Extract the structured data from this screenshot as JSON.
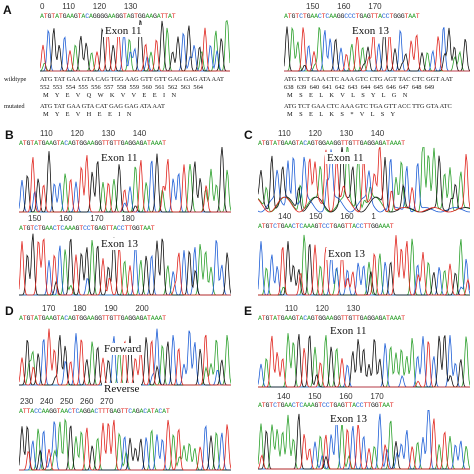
{
  "panels": {
    "A": {
      "letter": "A",
      "left": {
        "ticks": "0        110        120        130",
        "seq_top": "ATGTATGAAGTACAGGGGAAGGTAGTGGAAGATTAT",
        "exon_label": "Exon 11",
        "wildtype_label": "wildtype",
        "wildtype_seq": "ATG TAT GAA GTA CAG TGG AAG GTT GTT GAG GAG ATA AAT",
        "wildtype_pos": "552  553  554  555  556  557  558  559  560  561  562  563  564",
        "wildtype_aa": "M    Y    E    V    Q    W    K    V    V    E    E    I    N",
        "mutated_label": "mutated",
        "mutated_seq": "ATG TAT GAA GTA CAT GAG GAG ATA AAT",
        "mutated_aa": "M    Y    E    V    H    E    E    I    N"
      },
      "right": {
        "ticks": "150        160        170",
        "seq_top": "ATGTCTGAACTCAAGGCCCTGAGTTACCTGGGTAAT",
        "exon_label": "Exon 13",
        "wildtype_seq": "ATG TCT GAA CTC AAA GTC CTG AGT TAC CTC GGT AAT",
        "wildtype_pos": "638  639  640  641  642  643  644  645  646  647  648  649",
        "wildtype_aa": "M    S    E    L    K    V    L    S    Y    L    G    N",
        "mutated_seq": "ATG TCT GAA CTC AAA GTC TGA GTT ACC TTG GTA ATC",
        "mutated_aa": "M    S    E    L    K    S    *    V    L    S    Y"
      }
    },
    "B": {
      "letter": "B",
      "top_ticks": "110        120        130        140",
      "top_seq": "ATGTATGAAGTACAGTGGAAGGTTGTTGAGGAGATAAAT",
      "top_label": "Exon 11",
      "bottom_ticks": "150        160        170        180",
      "bottom_seq": "ATGTCTGAACTCAAAGTCCTGAGTTACCTTGGTAAT",
      "bottom_label": "Exon 13"
    },
    "C": {
      "letter": "C",
      "top_ticks": "110        120        130        140",
      "top_seq": "ATGTATGAAGTACAGTGGAAGGTTGTTGAGGAGATAAAT",
      "top_label": "Exon 11",
      "bottom_ticks": "140        150        160        1",
      "bottom_seq": "ATGTCTGAACTCAAAGTCCTGAGTTACCTTGGAAAT",
      "bottom_label": "Exon 13"
    },
    "D": {
      "letter": "D",
      "top_ticks": "170        180        190        200",
      "top_seq": "ATGTATGAAGTACAGTGGAAGGTTGTTGAGGAGATAAAT",
      "top_label": "Forward",
      "bottom_ticks": "230   240   250   260   270",
      "bottom_seq": "ATTACCAAGGTAACTCAGGACTTTGAGTTCAGACATACAT",
      "bottom_label": "Reverse"
    },
    "E": {
      "letter": "E",
      "top_ticks": "110        120        130",
      "top_seq": "ATGTATGAAGTACAGTGGAAGGTTGTTGAGGAGATAAAT",
      "top_label": "Exon 11",
      "bottom_ticks": "140        150        160        170",
      "bottom_seq": "ATGTCTGAACTCAAAGTCCTGAGTTACCTTGGTAAT",
      "bottom_label": "Exon 13"
    }
  },
  "colors": {
    "A": "#2ca02c",
    "C": "#1f5fd6",
    "G": "#111111",
    "T": "#e0261f"
  }
}
